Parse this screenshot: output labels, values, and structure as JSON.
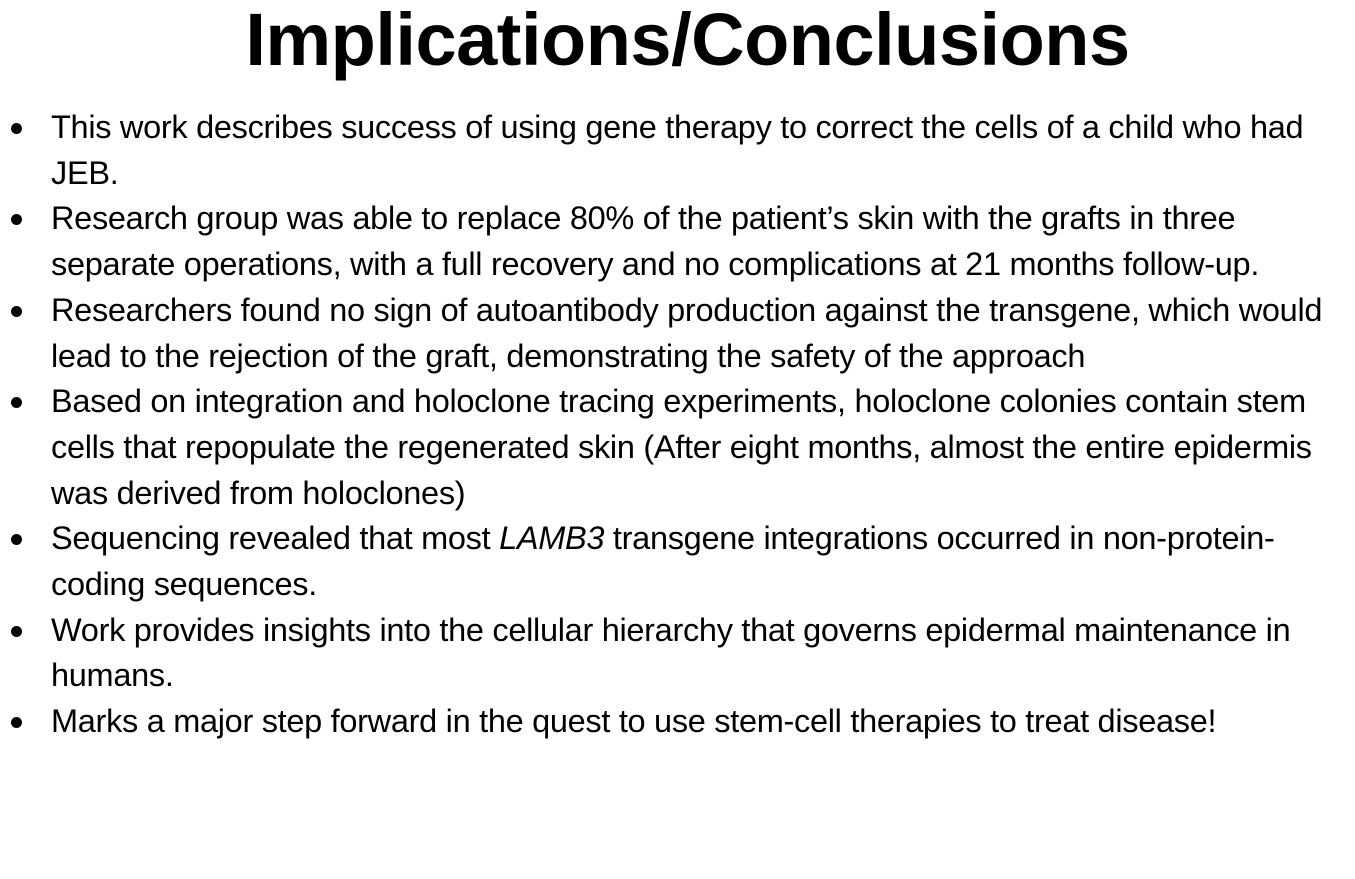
{
  "slide": {
    "title": "Implications/Conclusions",
    "bullets": [
      {
        "text": "This work describes success of using gene therapy to correct the cells of a child who had JEB."
      },
      {
        "text": "Research group was able to replace 80% of the patient’s skin with the grafts in three separate operations, with a full recovery and no complications at 21 months follow-up."
      },
      {
        "text": "Researchers found no sign of autoantibody production against the transgene, which would lead to the rejection of the graft, demonstrating the safety of the approach"
      },
      {
        "text": "Based on integration and holoclone tracing experiments, holoclone colonies contain stem cells that repopulate the regenerated skin (After eight months, almost the entire epidermis was derived from holoclones)"
      },
      {
        "before": "Sequencing revealed that most ",
        "italic": "LAMB3",
        "after": " transgene integrations occurred in non-protein-coding sequences."
      },
      {
        "text": "Work provides insights into the cellular hierarchy that governs epidermal maintenance in humans."
      },
      {
        "text": "Marks a major step forward in the quest to use stem-cell therapies to treat disease!"
      }
    ]
  }
}
